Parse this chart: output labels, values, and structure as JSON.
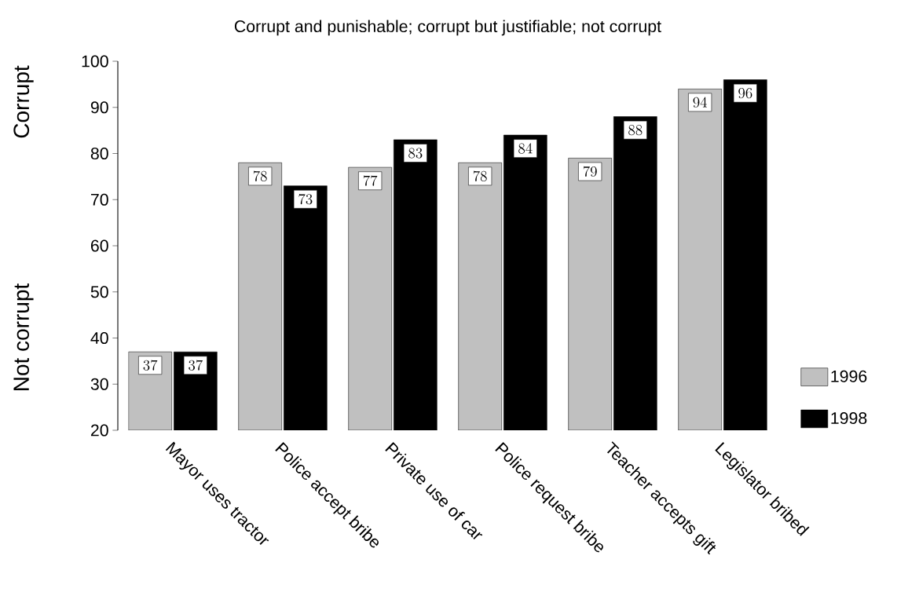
{
  "chart_data": {
    "type": "bar",
    "title": "Corrupt and punishable; corrupt but justifiable; not corrupt",
    "ylabel": "Not corrupt",
    "annotations": [
      "Corrupt"
    ],
    "categories": [
      "Mayor uses tractor",
      "Police accept bribe",
      "Private use of car",
      "Police request bribe",
      "Teacher accepts gift",
      "Legislator bribed"
    ],
    "series": [
      {
        "name": "1996",
        "color": "#c0c0c0",
        "values": [
          37,
          78,
          77,
          78,
          79,
          94
        ]
      },
      {
        "name": "1998",
        "color": "#000000",
        "values": [
          37,
          73,
          83,
          84,
          88,
          96
        ]
      }
    ],
    "ylim": [
      20,
      100
    ],
    "yticks": [
      20,
      30,
      40,
      50,
      60,
      70,
      80,
      90,
      100
    ],
    "data_labels": true,
    "legend": "right",
    "grid": false
  }
}
